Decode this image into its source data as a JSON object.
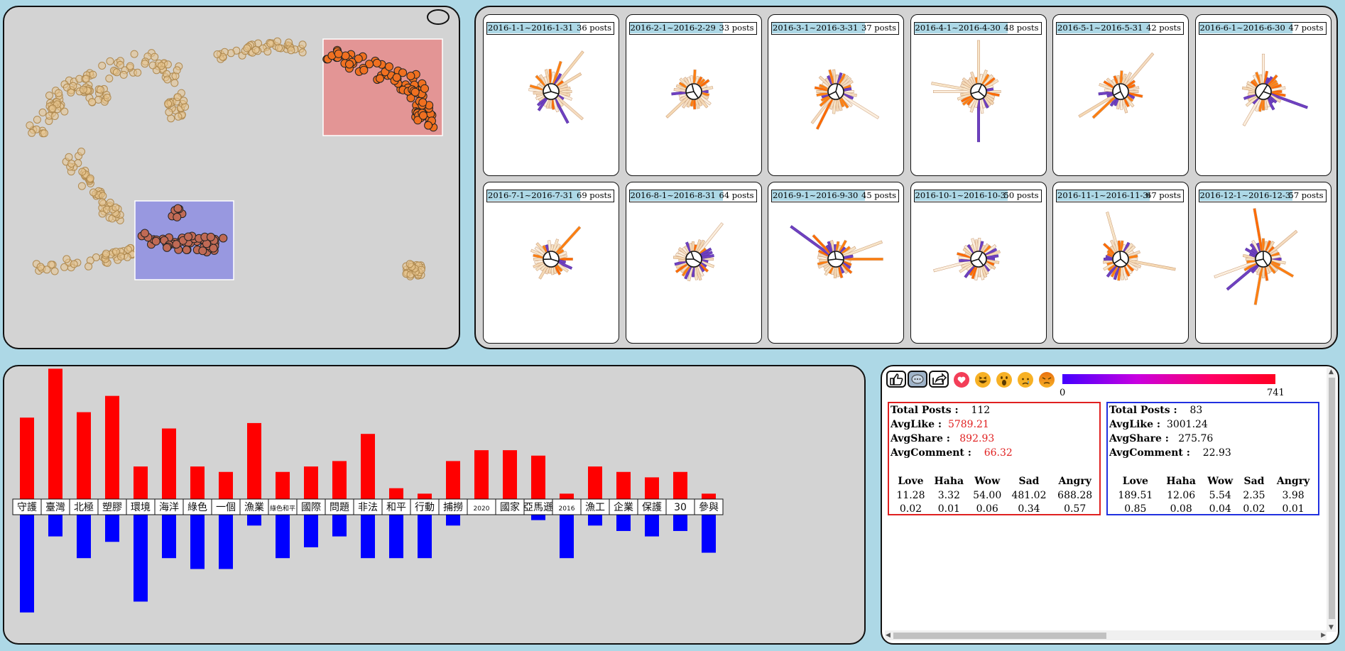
{
  "months": [
    {
      "range": "2016-1-1~2016-1-31",
      "count": "36 posts"
    },
    {
      "range": "2016-2-1~2016-2-29",
      "count": "33 posts"
    },
    {
      "range": "2016-3-1~2016-3-31",
      "count": "37 posts"
    },
    {
      "range": "2016-4-1~2016-4-30",
      "count": "48 posts"
    },
    {
      "range": "2016-5-1~2016-5-31",
      "count": "42 posts"
    },
    {
      "range": "2016-6-1~2016-6-30",
      "count": "47 posts"
    },
    {
      "range": "2016-7-1~2016-7-31",
      "count": "69 posts"
    },
    {
      "range": "2016-8-1~2016-8-31",
      "count": "64 posts"
    },
    {
      "range": "2016-9-1~2016-9-30",
      "count": "45 posts"
    },
    {
      "range": "2016-10-1~2016-10-31",
      "count": "50 posts"
    },
    {
      "range": "2016-11-1~2016-11-30",
      "count": "67 posts"
    },
    {
      "range": "2016-12-1~2016-12-31",
      "count": "57 posts"
    }
  ],
  "keywords": {
    "labels": [
      "守護",
      "臺灣",
      "北極",
      "塑膠",
      "環境",
      "海洋",
      "綠色",
      "一個",
      "漁業",
      "綠色和平",
      "國際",
      "問題",
      "非法",
      "和平",
      "行動",
      "捕撈",
      "2020",
      "國家",
      "亞馬遜",
      "2016",
      "漁工",
      "企業",
      "保護",
      "30",
      "參與"
    ],
    "group_a": [
      15,
      24,
      16,
      19,
      6,
      13,
      6,
      5,
      14,
      5,
      6,
      7,
      12,
      2,
      1,
      7,
      9,
      9,
      8,
      1,
      6,
      5,
      4,
      5,
      1
    ],
    "group_b": [
      18,
      4,
      8,
      5,
      16,
      8,
      10,
      10,
      2,
      8,
      6,
      4,
      8,
      8,
      8,
      2,
      0,
      0,
      1,
      8,
      2,
      3,
      4,
      3,
      7
    ]
  },
  "legend": {
    "min": "0",
    "max": "741",
    "gradient_start": "#4400ff",
    "gradient_end": "#ff0022"
  },
  "toolbar": {
    "buttons": [
      {
        "icon": "thumbs-up-icon"
      },
      {
        "icon": "comment-icon"
      },
      {
        "icon": "share-icon"
      }
    ],
    "reactions": [
      {
        "icon": "love-icon"
      },
      {
        "icon": "haha-icon"
      },
      {
        "icon": "wow-icon"
      },
      {
        "icon": "sad-icon"
      },
      {
        "icon": "angry-icon"
      }
    ]
  },
  "group_a": {
    "color": "#e02020",
    "total_posts_label": "Total Posts :",
    "total_posts": "112",
    "avg_like_label": "AvgLike :",
    "avg_like": "5789.21",
    "avg_share_label": "AvgShare :",
    "avg_share": "892.93",
    "avg_comment_label": "AvgComment :",
    "avg_comment": "66.32",
    "emotions": {
      "headers": [
        "Love",
        "Haha",
        "Wow",
        "Sad",
        "Angry"
      ],
      "values": [
        "11.28",
        "3.32",
        "54.00",
        "481.02",
        "688.28"
      ],
      "ratios": [
        "0.02",
        "0.01",
        "0.06",
        "0.34",
        "0.57"
      ]
    }
  },
  "group_b": {
    "color": "#2030e0",
    "total_posts_label": "Total Posts :",
    "total_posts": "83",
    "avg_like_label": "AvgLike :",
    "avg_like": "3001.24",
    "avg_share_label": "AvgShare :",
    "avg_share": "275.76",
    "avg_comment_label": "AvgComment :",
    "avg_comment": "22.93",
    "emotions": {
      "headers": [
        "Love",
        "Haha",
        "Wow",
        "Sad",
        "Angry"
      ],
      "values": [
        "189.51",
        "12.06",
        "5.54",
        "2.35",
        "3.98"
      ],
      "ratios": [
        "0.85",
        "0.08",
        "0.04",
        "0.02",
        "0.01"
      ]
    }
  }
}
